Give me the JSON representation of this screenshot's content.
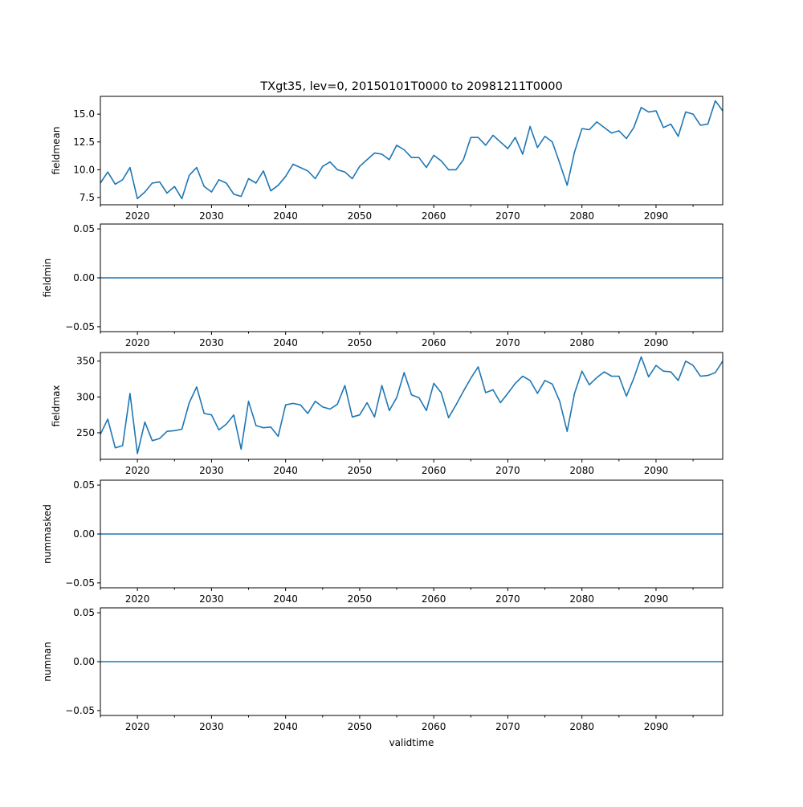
{
  "chart_data": [
    {
      "type": "line",
      "title": "TXgt35, lev=0, 20150101T0000 to 20981211T0000",
      "ylabel": "fieldmean",
      "xlabel": "",
      "xlim": [
        2015,
        2099
      ],
      "ylim": [
        6.85,
        16.6
      ],
      "yticks": [
        7.5,
        10.0,
        12.5,
        15.0
      ],
      "ytick_labels": [
        "7.5",
        "10.0",
        "12.5",
        "15.0"
      ],
      "color": "#1f77b4",
      "values": [
        8.8,
        9.8,
        8.7,
        9.1,
        10.2,
        7.4,
        8.0,
        8.8,
        8.9,
        7.9,
        8.5,
        7.4,
        9.5,
        10.2,
        8.5,
        8.0,
        9.1,
        8.8,
        7.8,
        7.6,
        9.2,
        8.8,
        9.9,
        8.1,
        8.6,
        9.4,
        10.5,
        10.2,
        9.9,
        9.2,
        10.3,
        10.7,
        10.0,
        9.8,
        9.2,
        10.3,
        10.9,
        11.5,
        11.4,
        10.9,
        12.2,
        11.8,
        11.1,
        11.1,
        10.2,
        11.3,
        10.8,
        10.0,
        10.0,
        10.9,
        12.9,
        12.9,
        12.2,
        13.1,
        12.5,
        11.9,
        12.9,
        11.4,
        13.9,
        12.0,
        13.0,
        12.5,
        10.6,
        8.6,
        11.6,
        13.7,
        13.6,
        14.3,
        13.8,
        13.3,
        13.5,
        12.8,
        13.8,
        15.6,
        15.2,
        15.3,
        13.8,
        14.1,
        13.0,
        15.2,
        15.0,
        14.0,
        14.1,
        16.2,
        15.3
      ]
    },
    {
      "type": "line",
      "ylabel": "fieldmin",
      "xlabel": "",
      "xlim": [
        2015,
        2099
      ],
      "ylim": [
        -0.055,
        0.055
      ],
      "yticks": [
        -0.05,
        0.0,
        0.05
      ],
      "ytick_labels": [
        "−0.05",
        "0.00",
        "0.05"
      ],
      "color": "#1f77b4",
      "constant": 0
    },
    {
      "type": "line",
      "ylabel": "fieldmax",
      "xlabel": "",
      "xlim": [
        2015,
        2099
      ],
      "ylim": [
        213,
        362
      ],
      "yticks": [
        250,
        300,
        350
      ],
      "ytick_labels": [
        "250",
        "300",
        "350"
      ],
      "color": "#1f77b4",
      "values": [
        248,
        269,
        229,
        232,
        305,
        221,
        265,
        239,
        242,
        252,
        253,
        255,
        292,
        314,
        277,
        275,
        254,
        262,
        275,
        227,
        294,
        260,
        257,
        258,
        245,
        289,
        291,
        289,
        277,
        294,
        286,
        283,
        290,
        316,
        272,
        275,
        292,
        272,
        316,
        281,
        299,
        334,
        303,
        299,
        281,
        319,
        306,
        271,
        289,
        308,
        326,
        342,
        306,
        310,
        292,
        305,
        319,
        329,
        323,
        305,
        323,
        318,
        294,
        252,
        305,
        336,
        317,
        327,
        335,
        329,
        329,
        301,
        326,
        356,
        328,
        344,
        336,
        335,
        323,
        350,
        344,
        329,
        330,
        334,
        350
      ]
    },
    {
      "type": "line",
      "ylabel": "nummasked",
      "xlabel": "",
      "xlim": [
        2015,
        2099
      ],
      "ylim": [
        -0.055,
        0.055
      ],
      "yticks": [
        -0.05,
        0.0,
        0.05
      ],
      "ytick_labels": [
        "−0.05",
        "0.00",
        "0.05"
      ],
      "color": "#1f77b4",
      "constant": 0
    },
    {
      "type": "line",
      "ylabel": "numnan",
      "xlabel": "validtime",
      "xlim": [
        2015,
        2099
      ],
      "ylim": [
        -0.055,
        0.055
      ],
      "yticks": [
        -0.05,
        0.0,
        0.05
      ],
      "ytick_labels": [
        "−0.05",
        "0.00",
        "0.05"
      ],
      "color": "#1f77b4",
      "constant": 0
    }
  ],
  "x_start_year": 2015,
  "xticks": [
    2020,
    2030,
    2040,
    2050,
    2060,
    2070,
    2080,
    2090
  ],
  "xtick_labels": [
    "2020",
    "2030",
    "2040",
    "2050",
    "2060",
    "2070",
    "2080",
    "2090"
  ],
  "minor_xticks": [
    2015,
    2025,
    2035,
    2045,
    2055,
    2065,
    2075,
    2085,
    2095
  ]
}
